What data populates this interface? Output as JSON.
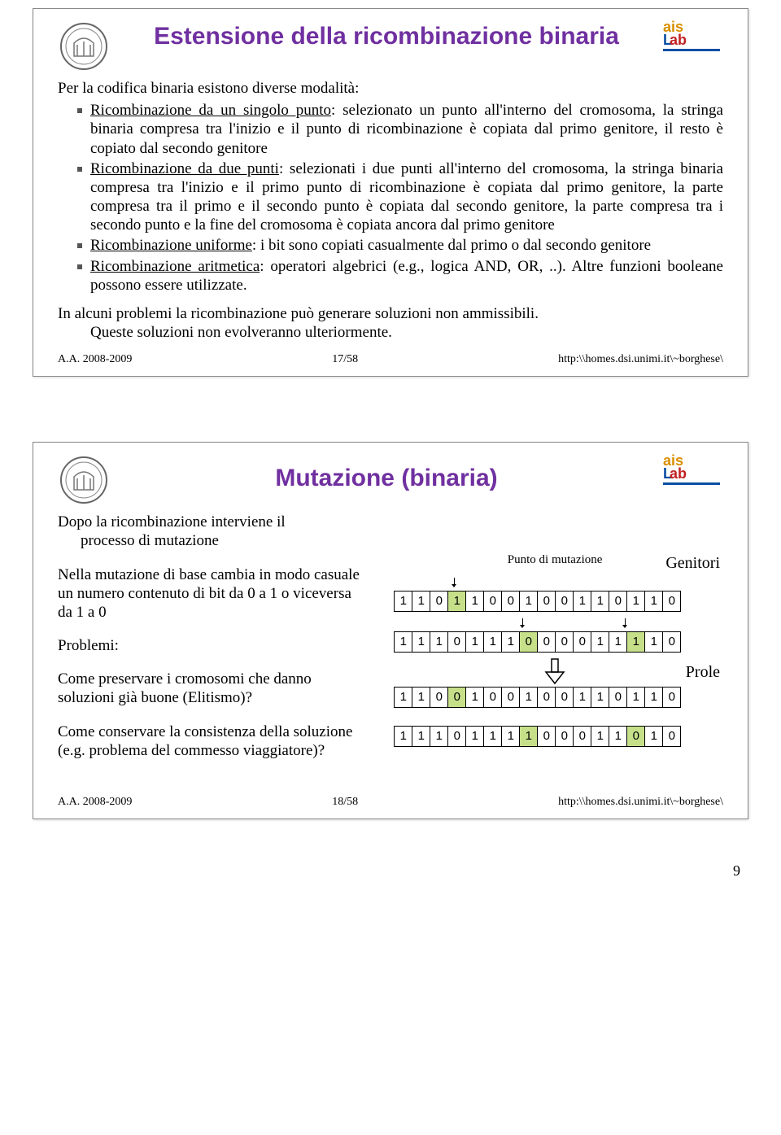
{
  "slide1": {
    "title": "Estensione della ricombinazione binaria",
    "intro": "Per la codifica binaria esistono diverse modalità:",
    "bullets": [
      {
        "u": "Ricombinazione da un singolo punto",
        "rest": ": selezionato un punto all'interno del cromosoma, la stringa binaria compresa tra l'inizio e il punto di ricombinazione è copiata dal primo genitore, il resto è copiato dal secondo genitore"
      },
      {
        "u": "Ricombinazione da due punti",
        "rest": ": selezionati i due punti all'interno del cromosoma, la stringa binaria compresa tra l'inizio e il primo punto di ricombinazione è copiata dal primo genitore, la parte compresa tra il primo e il secondo punto è copiata dal secondo genitore, la parte compresa tra i secondo punto e la fine del cromosoma è copiata ancora dal primo genitore"
      },
      {
        "u": "Ricombinazione uniforme",
        "rest": ": i bit sono copiati casualmente dal primo o dal secondo genitore"
      },
      {
        "u": "Ricombinazione aritmetica",
        "rest": ": operatori algebrici (e.g., logica AND, OR, ..). Altre funzioni booleane possono essere utilizzate."
      }
    ],
    "closing1": "In alcuni problemi la ricombinazione può generare soluzioni non ammissibili.",
    "closing2": "Queste soluzioni non evolveranno ulteriormente.",
    "footer": {
      "left": "A.A. 2008-2009",
      "mid": "17/58",
      "right": "http:\\\\homes.dsi.unimi.it\\~borghese\\"
    }
  },
  "slide2": {
    "title": "Mutazione (binaria)",
    "p1a": "Dopo la ricombinazione interviene il",
    "p1b": "processo  di mutazione",
    "p2": "Nella mutazione di base cambia in modo casuale un numero contenuto di bit da 0 a 1 o viceversa da 1 a 0",
    "p3": "Problemi:",
    "p4": "Come preservare i cromosomi che danno soluzioni già buone (Elitismo)?",
    "p5": "Come conservare la consistenza della soluzione (e.g. problema del commesso viaggiatore)?",
    "caption": "Punto di mutazione",
    "label_genitori": "Genitori",
    "label_prole": "Prole",
    "bits": {
      "g1": [
        1,
        1,
        0,
        1,
        1,
        0,
        0,
        1,
        0,
        0,
        1,
        1,
        0,
        1,
        1,
        0
      ],
      "g1_hl": [
        3
      ],
      "g2": [
        1,
        1,
        1,
        0,
        1,
        1,
        1,
        0,
        0,
        0,
        0,
        1,
        1,
        1,
        1,
        0
      ],
      "g2_hl": [
        7,
        13
      ],
      "o1": [
        1,
        1,
        0,
        0,
        1,
        0,
        0,
        1,
        0,
        0,
        1,
        1,
        0,
        1,
        1,
        0
      ],
      "o1_hl": [
        3
      ],
      "o2": [
        1,
        1,
        1,
        0,
        1,
        1,
        1,
        1,
        0,
        0,
        0,
        1,
        1,
        0,
        1,
        0
      ],
      "o2_hl": [
        7,
        13
      ]
    },
    "footer": {
      "left": "A.A. 2008-2009",
      "mid": "18/58",
      "right": "http:\\\\homes.dsi.unimi.it\\~borghese\\"
    }
  },
  "pagenum": "9"
}
